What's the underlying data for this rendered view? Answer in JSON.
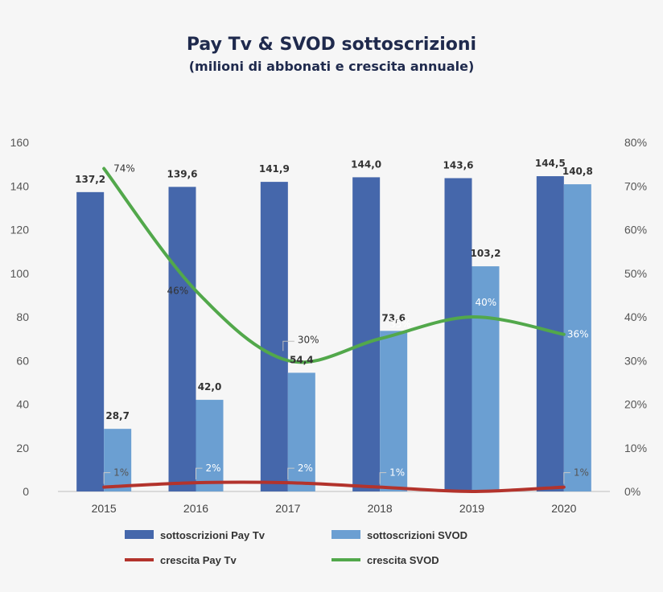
{
  "chart_data": {
    "type": "bar",
    "title": "Pay Tv & SVOD sottoscrizioni",
    "subtitle": "(milioni di abbonati e crescita annuale)",
    "categories": [
      "2015",
      "2016",
      "2017",
      "2018",
      "2019",
      "2020"
    ],
    "ylim": [
      0,
      160
    ],
    "yticks": [
      0,
      20,
      40,
      60,
      80,
      100,
      120,
      140,
      160
    ],
    "y2lim": [
      0,
      80
    ],
    "y2ticks": [
      "0%",
      "10%",
      "20%",
      "30%",
      "40%",
      "50%",
      "60%",
      "70%",
      "80%"
    ],
    "series": [
      {
        "name": "sottoscrizioni Pay Tv",
        "kind": "bar",
        "axis": "left",
        "color": "#4567ab",
        "values": [
          137.2,
          139.6,
          141.9,
          144.0,
          143.6,
          144.5
        ],
        "labels": [
          "137,2",
          "139,6",
          "141,9",
          "144,0",
          "143,6",
          "144,5"
        ]
      },
      {
        "name": "sottoscrizioni SVOD",
        "kind": "bar",
        "axis": "left",
        "color": "#6b9fd2",
        "values": [
          28.7,
          42.0,
          54.4,
          73.6,
          103.2,
          140.8
        ],
        "labels": [
          "28,7",
          "42,0",
          "54,4",
          "73,6",
          "103,2",
          "140,8"
        ]
      },
      {
        "name": "crescita Pay Tv",
        "kind": "line",
        "axis": "right",
        "color": "#b3332c",
        "values": [
          1,
          2,
          2,
          1,
          0,
          1
        ],
        "labels": [
          "1%",
          "2%",
          "2%",
          "1%",
          "",
          "1%"
        ]
      },
      {
        "name": "crescita SVOD",
        "kind": "line",
        "axis": "right",
        "color": "#52a84b",
        "values": [
          74,
          46,
          30,
          35,
          40,
          36
        ],
        "labels": [
          "74%",
          "46%",
          "30%",
          "35%",
          "40%",
          "36%"
        ]
      }
    ],
    "legend_position": "bottom",
    "grid": false
  }
}
